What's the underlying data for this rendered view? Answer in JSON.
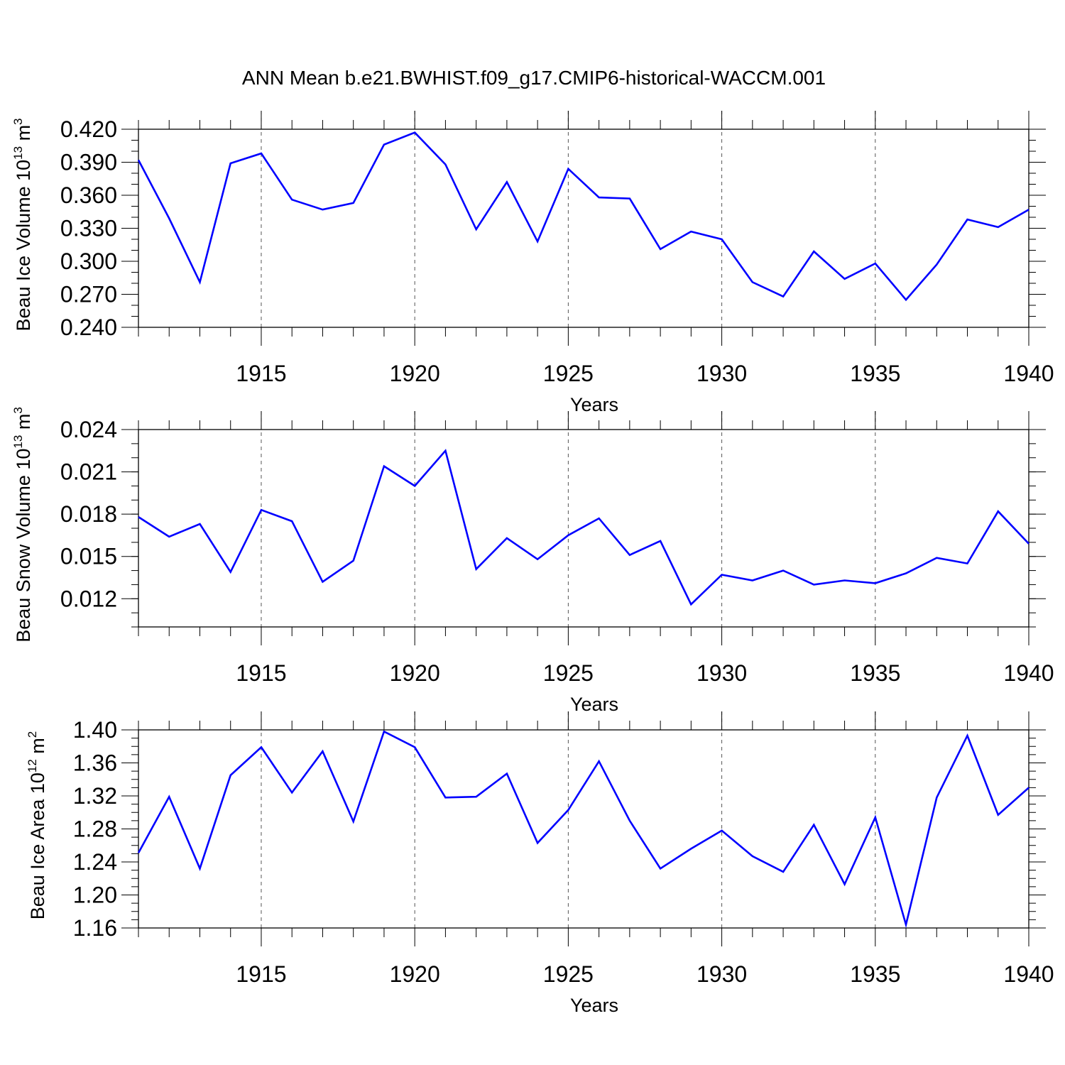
{
  "figure": {
    "title": "ANN Mean b.e21.BWHIST.f09_g17.CMIP6-historical-WACCM.001"
  },
  "colors": {
    "line": "#0000ff",
    "axis": "#000000",
    "grid": "#555555",
    "background": "#ffffff"
  },
  "chart_data": [
    {
      "type": "line",
      "ylabel": {
        "prefix": "Beau Ice Volume 10",
        "exponent": "13",
        "unit": " m",
        "unit_exponent": "3"
      },
      "xlabel": "Years",
      "xlim": [
        1911,
        1940
      ],
      "ylim": [
        0.24,
        0.42
      ],
      "yticks": [
        0.24,
        0.27,
        0.3,
        0.33,
        0.36,
        0.39,
        0.42
      ],
      "ytick_labels": [
        "0.240",
        "0.270",
        "0.300",
        "0.330",
        "0.360",
        "0.390",
        "0.420"
      ],
      "xticks": [
        1915,
        1920,
        1925,
        1930,
        1935,
        1940
      ],
      "xtick_labels": [
        "1915",
        "1920",
        "1925",
        "1930",
        "1935",
        "1940"
      ],
      "grid": "vertical dashed at major x ticks",
      "x": [
        1911,
        1912,
        1913,
        1914,
        1915,
        1916,
        1917,
        1918,
        1919,
        1920,
        1921,
        1922,
        1923,
        1924,
        1925,
        1926,
        1927,
        1928,
        1929,
        1930,
        1931,
        1932,
        1933,
        1934,
        1935,
        1936,
        1937,
        1938,
        1939,
        1940
      ],
      "values": [
        0.392,
        0.339,
        0.281,
        0.389,
        0.398,
        0.356,
        0.347,
        0.353,
        0.406,
        0.417,
        0.388,
        0.329,
        0.372,
        0.318,
        0.384,
        0.358,
        0.357,
        0.311,
        0.327,
        0.32,
        0.281,
        0.268,
        0.309,
        0.284,
        0.298,
        0.265,
        0.297,
        0.338,
        0.331,
        0.347
      ]
    },
    {
      "type": "line",
      "ylabel": {
        "prefix": "Beau Snow Volume 10",
        "exponent": "13",
        "unit": " m",
        "unit_exponent": "3"
      },
      "xlabel": "Years",
      "xlim": [
        1911,
        1940
      ],
      "ylim": [
        0.01,
        0.024
      ],
      "yticks": [
        0.012,
        0.015,
        0.018,
        0.021,
        0.024
      ],
      "ytick_labels": [
        "0.012",
        "0.015",
        "0.018",
        "0.021",
        "0.024"
      ],
      "xticks": [
        1915,
        1920,
        1925,
        1930,
        1935,
        1940
      ],
      "xtick_labels": [
        "1915",
        "1920",
        "1925",
        "1930",
        "1935",
        "1940"
      ],
      "grid": "vertical dashed at major x ticks",
      "x": [
        1911,
        1912,
        1913,
        1914,
        1915,
        1916,
        1917,
        1918,
        1919,
        1920,
        1921,
        1922,
        1923,
        1924,
        1925,
        1926,
        1927,
        1928,
        1929,
        1930,
        1931,
        1932,
        1933,
        1934,
        1935,
        1936,
        1937,
        1938,
        1939,
        1940
      ],
      "values": [
        0.0178,
        0.0164,
        0.0173,
        0.0139,
        0.0183,
        0.0175,
        0.0132,
        0.0147,
        0.0214,
        0.02,
        0.0225,
        0.0141,
        0.0163,
        0.0148,
        0.0165,
        0.0177,
        0.0151,
        0.0161,
        0.0116,
        0.0137,
        0.0133,
        0.014,
        0.013,
        0.0133,
        0.0131,
        0.0138,
        0.0149,
        0.0145,
        0.0182,
        0.0159
      ]
    },
    {
      "type": "line",
      "ylabel": {
        "prefix": "Beau Ice Area 10",
        "exponent": "12",
        "unit": " m",
        "unit_exponent": "2"
      },
      "xlabel": "Years",
      "xlim": [
        1911,
        1940
      ],
      "ylim": [
        1.16,
        1.4
      ],
      "yticks": [
        1.16,
        1.2,
        1.24,
        1.28,
        1.32,
        1.36,
        1.4
      ],
      "ytick_labels": [
        "1.16",
        "1.20",
        "1.24",
        "1.28",
        "1.32",
        "1.36",
        "1.40"
      ],
      "xticks": [
        1915,
        1920,
        1925,
        1930,
        1935,
        1940
      ],
      "xtick_labels": [
        "1915",
        "1920",
        "1925",
        "1930",
        "1935",
        "1940"
      ],
      "grid": "vertical dashed at major x ticks",
      "x": [
        1911,
        1912,
        1913,
        1914,
        1915,
        1916,
        1917,
        1918,
        1919,
        1920,
        1921,
        1922,
        1923,
        1924,
        1925,
        1926,
        1927,
        1928,
        1929,
        1930,
        1931,
        1932,
        1933,
        1934,
        1935,
        1936,
        1937,
        1938,
        1939,
        1940
      ],
      "values": [
        1.251,
        1.319,
        1.232,
        1.345,
        1.379,
        1.324,
        1.374,
        1.289,
        1.398,
        1.379,
        1.318,
        1.319,
        1.347,
        1.263,
        1.303,
        1.362,
        1.29,
        1.232,
        1.256,
        1.278,
        1.247,
        1.228,
        1.285,
        1.213,
        1.294,
        1.164,
        1.318,
        1.393,
        1.297,
        1.33
      ]
    }
  ]
}
